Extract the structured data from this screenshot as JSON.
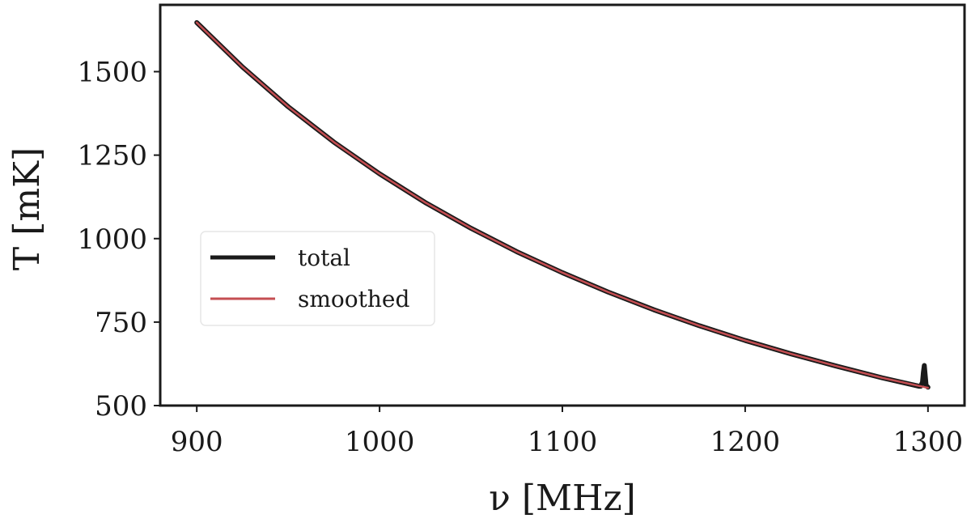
{
  "chart_data": {
    "type": "line",
    "title": "",
    "xlabel": "ν [MHz]",
    "ylabel": "T [mK]",
    "xlim": [
      880,
      1320
    ],
    "ylim": [
      500,
      1700
    ],
    "xticks": [
      900,
      1000,
      1100,
      1200,
      1300
    ],
    "yticks": [
      500,
      750,
      1000,
      1250,
      1500
    ],
    "grid": false,
    "legend_position": "center-left",
    "series": [
      {
        "name": "total",
        "color": "#1a1a1a",
        "x": [
          900,
          925,
          950,
          975,
          1000,
          1025,
          1050,
          1075,
          1100,
          1125,
          1150,
          1175,
          1200,
          1225,
          1250,
          1275,
          1295,
          1296,
          1297,
          1297.5,
          1298,
          1298.5,
          1299,
          1300
        ],
        "y": [
          1647,
          1514,
          1395,
          1289,
          1194,
          1108,
          1031,
          961,
          898,
          840,
          787,
          739,
          695,
          655,
          618,
          583,
          558,
          558,
          570,
          600,
          620,
          590,
          560,
          555
        ]
      },
      {
        "name": "smoothed",
        "color": "#c44e52",
        "x": [
          900,
          925,
          950,
          975,
          1000,
          1025,
          1050,
          1075,
          1100,
          1125,
          1150,
          1175,
          1200,
          1225,
          1250,
          1275,
          1300
        ],
        "y": [
          1647,
          1514,
          1395,
          1289,
          1194,
          1108,
          1031,
          961,
          898,
          840,
          787,
          739,
          695,
          655,
          618,
          583,
          553
        ]
      }
    ]
  }
}
